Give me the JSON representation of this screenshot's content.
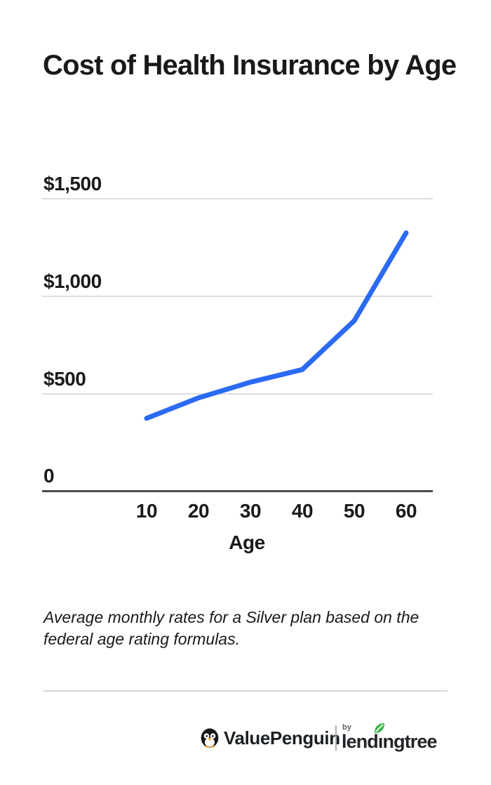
{
  "title": "Cost of Health Insurance by Age",
  "chart_data": {
    "type": "line",
    "title": "Cost of Health Insurance by Age",
    "categories": [
      "10",
      "20",
      "30",
      "40",
      "50",
      "60"
    ],
    "x": [
      10,
      20,
      30,
      40,
      50,
      60
    ],
    "series": [
      {
        "name": "Average monthly rate ($)",
        "values": [
          375,
          480,
          560,
          625,
          875,
          1325
        ]
      }
    ],
    "xlabel": "Age",
    "ylabel": "",
    "ylim": [
      0,
      1500
    ],
    "yticks": [
      0,
      500,
      1000,
      1500
    ],
    "ytick_labels": [
      "0",
      "$500",
      "$1,000",
      "$1,500"
    ],
    "grid": "horizontal gridlines at $500 intervals, no vertical gridlines",
    "legend_position": "none",
    "line_color": "#2b6af3"
  },
  "caption": "Average monthly rates for a Silver plan based on the federal age rating formulas.",
  "footer": {
    "valuepenguin_label": "ValuePenguin",
    "by_label": "by",
    "lendingtree_label": "lendingtree"
  },
  "colors": {
    "background": "#ffffff",
    "text": "#1a1a1a",
    "gridline": "#dedede",
    "axis": "#4c4c4c",
    "line": "#2b6af3",
    "leaf_green": "#3fb549",
    "beak_orange": "#f5a623"
  }
}
